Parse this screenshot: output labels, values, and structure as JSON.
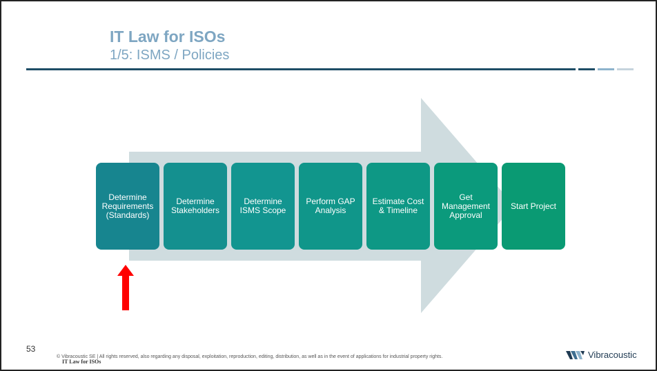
{
  "slide": {
    "title": "IT Law for ISOs",
    "subtitle": "1/5: ISMS / Policies",
    "page_number": "53",
    "footer_text": "© Vibracoustic SE | All rights reserved, also regarding any disposal, exploitation, reproduction, editing, distribution, as well as in the event of applications for industrial property rights.",
    "footer_title": "IT Law for ISOs",
    "logo_text": "Vibracoustic"
  },
  "steps": [
    {
      "label": "Determine\nRequirements\n(Standards)",
      "color": "#17858f"
    },
    {
      "label": "Determine\nStakeholders",
      "color": "#14908f"
    },
    {
      "label": "Determine\nISMS Scope",
      "color": "#129590"
    },
    {
      "label": "Perform GAP\nAnalysis",
      "color": "#10968a"
    },
    {
      "label": "Estimate Cost\n& Timeline",
      "color": "#0e9885"
    },
    {
      "label": "Get\nManagement\nApproval",
      "color": "#0b9a7c"
    },
    {
      "label": "Start Project",
      "color": "#0a9a73"
    }
  ],
  "colors": {
    "title": "#7ea6c2",
    "background_arrow": "#cfdcdf",
    "pointer_arrow": "#ff0000",
    "rule": "#1e4d66"
  },
  "pointer": {
    "icon": "red-up-arrow-icon",
    "target_step": 1
  }
}
